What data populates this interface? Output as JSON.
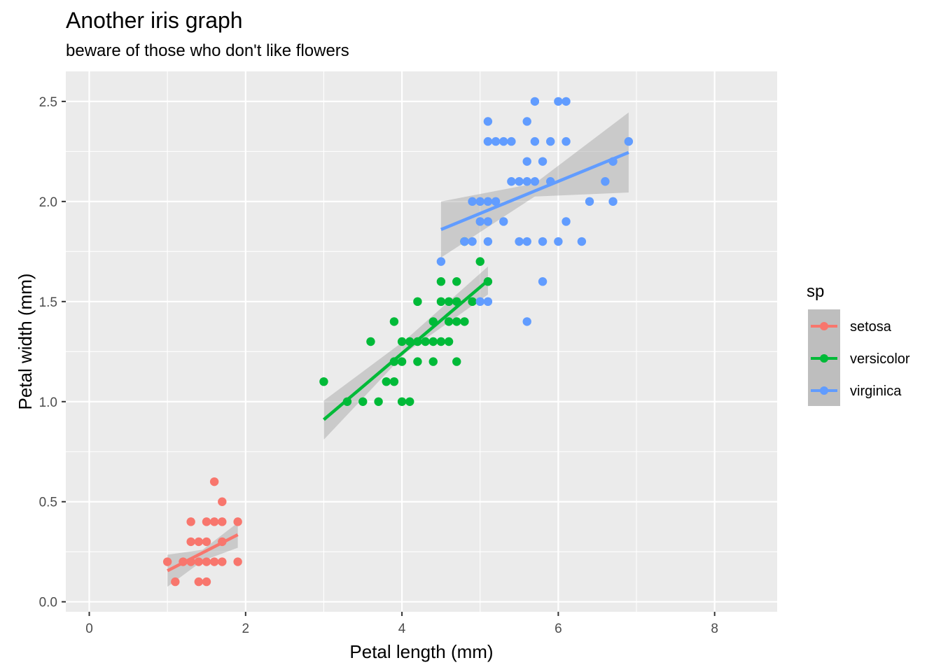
{
  "chart_data": {
    "type": "scatter",
    "title": "Another iris graph",
    "subtitle": "beware of those who don't like flowers",
    "xlabel": "Petal length (mm)",
    "ylabel": "Petal width (mm)",
    "xlim": [
      -0.3,
      8.8
    ],
    "ylim": [
      -0.05,
      2.65
    ],
    "x_ticks": [
      0,
      2,
      4,
      6,
      8
    ],
    "x_tick_labels": [
      "0",
      "2",
      "4",
      "6",
      "8"
    ],
    "y_ticks": [
      0,
      0.5,
      1,
      1.5,
      2,
      2.5
    ],
    "y_tick_labels": [
      "0.0",
      "0.5",
      "1.0",
      "1.5",
      "2.0",
      "2.5"
    ],
    "grid": true,
    "legend": {
      "title": "sp",
      "position": "right"
    },
    "series": [
      {
        "name": "setosa",
        "color": "#F8766D",
        "points": [
          [
            1.0,
            0.2
          ],
          [
            1.1,
            0.1
          ],
          [
            1.2,
            0.2
          ],
          [
            1.3,
            0.2
          ],
          [
            1.3,
            0.3
          ],
          [
            1.3,
            0.4
          ],
          [
            1.4,
            0.1
          ],
          [
            1.4,
            0.2
          ],
          [
            1.4,
            0.3
          ],
          [
            1.5,
            0.1
          ],
          [
            1.5,
            0.2
          ],
          [
            1.5,
            0.3
          ],
          [
            1.5,
            0.4
          ],
          [
            1.6,
            0.2
          ],
          [
            1.6,
            0.4
          ],
          [
            1.6,
            0.6
          ],
          [
            1.7,
            0.2
          ],
          [
            1.7,
            0.3
          ],
          [
            1.7,
            0.4
          ],
          [
            1.7,
            0.5
          ],
          [
            1.9,
            0.2
          ],
          [
            1.9,
            0.4
          ]
        ],
        "fit": {
          "x": [
            1.0,
            1.9
          ],
          "y": [
            0.155,
            0.335
          ]
        },
        "band_lower": [
          [
            1.0,
            0.075
          ],
          [
            1.45,
            0.205
          ],
          [
            1.9,
            0.27
          ]
        ],
        "band_upper": [
          [
            1.0,
            0.235
          ],
          [
            1.45,
            0.26
          ],
          [
            1.9,
            0.395
          ]
        ]
      },
      {
        "name": "versicolor",
        "color": "#00BA38",
        "points": [
          [
            3.0,
            1.1
          ],
          [
            3.3,
            1.0
          ],
          [
            3.5,
            1.0
          ],
          [
            3.6,
            1.3
          ],
          [
            3.7,
            1.0
          ],
          [
            3.8,
            1.1
          ],
          [
            3.9,
            1.1
          ],
          [
            3.9,
            1.2
          ],
          [
            3.9,
            1.4
          ],
          [
            4.0,
            1.0
          ],
          [
            4.0,
            1.2
          ],
          [
            4.0,
            1.3
          ],
          [
            4.1,
            1.0
          ],
          [
            4.1,
            1.3
          ],
          [
            4.2,
            1.2
          ],
          [
            4.2,
            1.3
          ],
          [
            4.2,
            1.5
          ],
          [
            4.3,
            1.3
          ],
          [
            4.4,
            1.2
          ],
          [
            4.4,
            1.3
          ],
          [
            4.4,
            1.4
          ],
          [
            4.5,
            1.3
          ],
          [
            4.5,
            1.5
          ],
          [
            4.5,
            1.6
          ],
          [
            4.6,
            1.3
          ],
          [
            4.6,
            1.4
          ],
          [
            4.6,
            1.5
          ],
          [
            4.7,
            1.2
          ],
          [
            4.7,
            1.4
          ],
          [
            4.7,
            1.5
          ],
          [
            4.7,
            1.6
          ],
          [
            4.8,
            1.4
          ],
          [
            4.8,
            1.8
          ],
          [
            4.9,
            1.5
          ],
          [
            5.0,
            1.7
          ],
          [
            5.1,
            1.6
          ]
        ],
        "fit": {
          "x": [
            3.0,
            5.1
          ],
          "y": [
            0.91,
            1.605
          ]
        },
        "band_lower": [
          [
            3.0,
            0.81
          ],
          [
            4.05,
            1.245
          ],
          [
            5.1,
            1.535
          ]
        ],
        "band_upper": [
          [
            3.0,
            1.005
          ],
          [
            4.05,
            1.31
          ],
          [
            5.1,
            1.675
          ]
        ]
      },
      {
        "name": "virginica",
        "color": "#619CFF",
        "points": [
          [
            4.5,
            1.7
          ],
          [
            4.8,
            1.8
          ],
          [
            4.9,
            1.8
          ],
          [
            4.9,
            2.0
          ],
          [
            5.0,
            1.5
          ],
          [
            5.0,
            1.9
          ],
          [
            5.0,
            2.0
          ],
          [
            5.1,
            1.5
          ],
          [
            5.1,
            1.8
          ],
          [
            5.1,
            1.9
          ],
          [
            5.1,
            2.0
          ],
          [
            5.1,
            2.3
          ],
          [
            5.1,
            2.4
          ],
          [
            5.2,
            2.0
          ],
          [
            5.2,
            2.3
          ],
          [
            5.3,
            1.9
          ],
          [
            5.3,
            2.3
          ],
          [
            5.4,
            2.1
          ],
          [
            5.4,
            2.3
          ],
          [
            5.5,
            1.8
          ],
          [
            5.5,
            2.1
          ],
          [
            5.6,
            1.4
          ],
          [
            5.6,
            1.8
          ],
          [
            5.6,
            2.1
          ],
          [
            5.6,
            2.2
          ],
          [
            5.6,
            2.4
          ],
          [
            5.7,
            2.1
          ],
          [
            5.7,
            2.3
          ],
          [
            5.7,
            2.5
          ],
          [
            5.8,
            1.6
          ],
          [
            5.8,
            1.8
          ],
          [
            5.8,
            2.2
          ],
          [
            5.9,
            2.1
          ],
          [
            5.9,
            2.3
          ],
          [
            6.0,
            1.8
          ],
          [
            6.0,
            2.5
          ],
          [
            6.1,
            1.9
          ],
          [
            6.1,
            2.3
          ],
          [
            6.1,
            2.5
          ],
          [
            6.3,
            1.8
          ],
          [
            6.4,
            2.0
          ],
          [
            6.6,
            2.1
          ],
          [
            6.7,
            2.0
          ],
          [
            6.7,
            2.2
          ],
          [
            6.9,
            2.3
          ]
        ],
        "fit": {
          "x": [
            4.5,
            6.9
          ],
          "y": [
            1.86,
            2.245
          ]
        },
        "band_lower": [
          [
            4.5,
            1.72
          ],
          [
            5.7,
            2.025
          ],
          [
            6.9,
            2.045
          ]
        ],
        "band_upper": [
          [
            4.5,
            2.0
          ],
          [
            5.7,
            2.09
          ],
          [
            6.9,
            2.445
          ]
        ]
      }
    ]
  }
}
